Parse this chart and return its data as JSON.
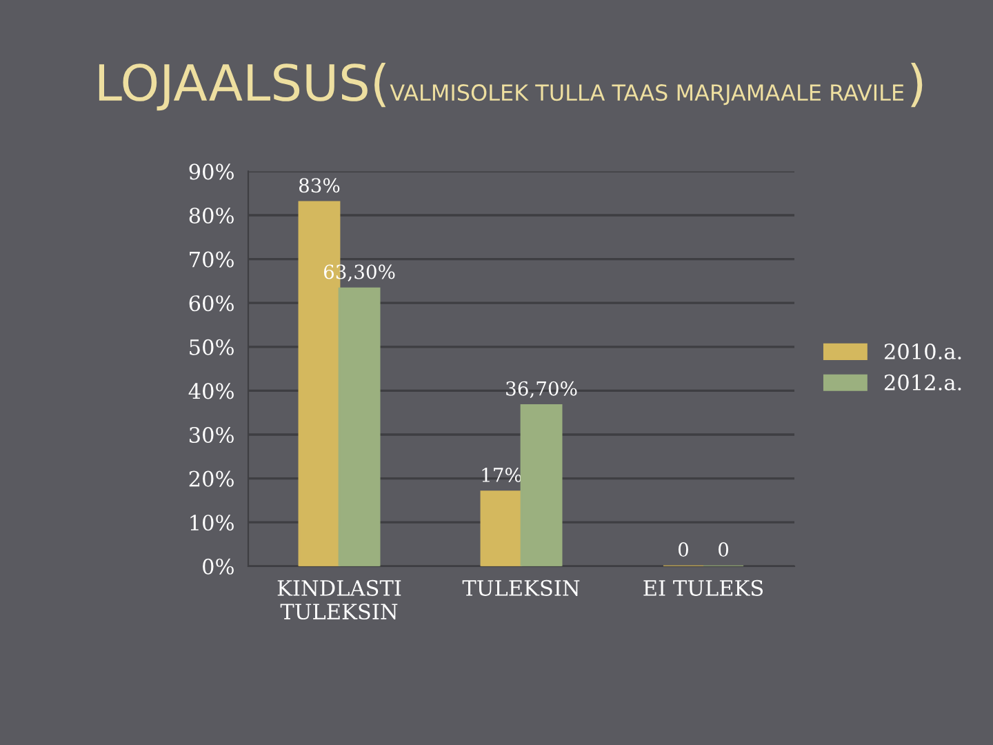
{
  "chart_data": {
    "type": "bar",
    "title": "LOJAALSUS(VALMISOLEK TULLA TAAS MARJAMAALE RAVILE)",
    "categories": [
      "KINDLASTI\nTULEKSIN",
      "TULEKSIN",
      "EI TULEKS"
    ],
    "series": [
      {
        "name": "2010.a.",
        "color": "#d4b85e",
        "values": [
          83,
          17,
          0
        ],
        "value_labels": [
          "83%",
          "17%",
          "0"
        ]
      },
      {
        "name": "2012.a.",
        "color": "#9bb07f",
        "values": [
          63.3,
          36.7,
          0
        ],
        "value_labels": [
          "63,30%",
          "36,70%",
          "0"
        ]
      }
    ],
    "ylim": [
      0,
      90
    ],
    "yticks": [
      {
        "value": 0,
        "label": "0%"
      },
      {
        "value": 10,
        "label": "10%"
      },
      {
        "value": 20,
        "label": "20%"
      },
      {
        "value": 30,
        "label": "30%"
      },
      {
        "value": 40,
        "label": "40%"
      },
      {
        "value": 50,
        "label": "50%"
      },
      {
        "value": 60,
        "label": "60%"
      },
      {
        "value": 70,
        "label": "70%"
      },
      {
        "value": 80,
        "label": "80%"
      },
      {
        "value": 90,
        "label": "90%"
      }
    ],
    "grid": "y",
    "legend": "right"
  }
}
